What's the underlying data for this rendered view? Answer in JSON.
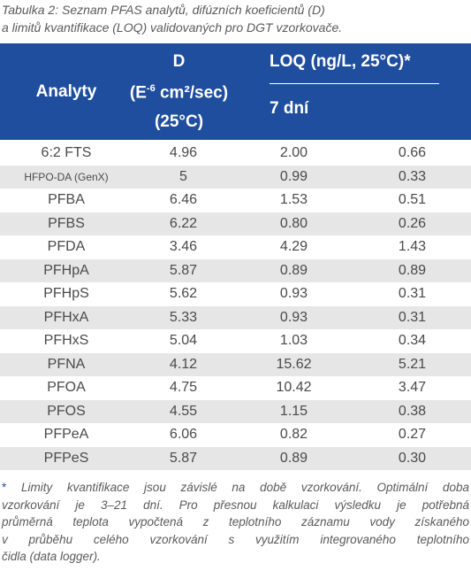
{
  "caption": [
    "Tabulka 2: Seznam PFAS analytů, difúzních koeficientů (D)",
    "a limitů kvantifikace (LOQ) validovaných pro DGT vzorkovače."
  ],
  "header": {
    "analyte": "Analyty",
    "d": {
      "line1": "D",
      "unit_open": "(E",
      "unit_sup": "-6",
      "unit_close": " cm²/sec)",
      "line3": "(25°C)"
    },
    "loq": "LOQ (ng/L, 25°C)*",
    "loq_sub": "7 dní"
  },
  "table": {
    "rows": [
      [
        "6:2 FTS",
        "4.96",
        "2.00",
        "0.66"
      ],
      [
        "HFPO-DA (GenX)",
        "5",
        "0.99",
        "0.33"
      ],
      [
        "PFBA",
        "6.46",
        "1.53",
        "0.51"
      ],
      [
        "PFBS",
        "6.22",
        "0.80",
        "0.26"
      ],
      [
        "PFDA",
        "3.46",
        "4.29",
        "1.43"
      ],
      [
        "PFHpA",
        "5.87",
        "0.89",
        "0.89"
      ],
      [
        "PFHpS",
        "5.62",
        "0.93",
        "0.31"
      ],
      [
        "PFHxA",
        "5.33",
        "0.93",
        "0.31"
      ],
      [
        "PFHxS",
        "5.04",
        "1.03",
        "0.34"
      ],
      [
        "PFNA",
        "4.12",
        "15.62",
        "5.21"
      ],
      [
        "PFOA",
        "4.75",
        "10.42",
        "3.47"
      ],
      [
        "PFOS",
        "4.55",
        "1.15",
        "0.38"
      ],
      [
        "PFPeA",
        "6.06",
        "0.82",
        "0.27"
      ],
      [
        "PFPeS",
        "5.87",
        "0.89",
        "0.30"
      ]
    ]
  },
  "footnote": {
    "marker": "*",
    "lines": [
      "Limity kvantifikace jsou závislé na době vzorkování. Optimální doba",
      "vzorkování je 3–21 dní. Pro přesnou kalkulaci výsledku je potřebná",
      "průměrná teplota vypočtená z teplotního záznamu vody získaného",
      "v průběhu celého vzorkování s využitím integrovaného teplotního",
      "čidla (data logger)."
    ]
  }
}
